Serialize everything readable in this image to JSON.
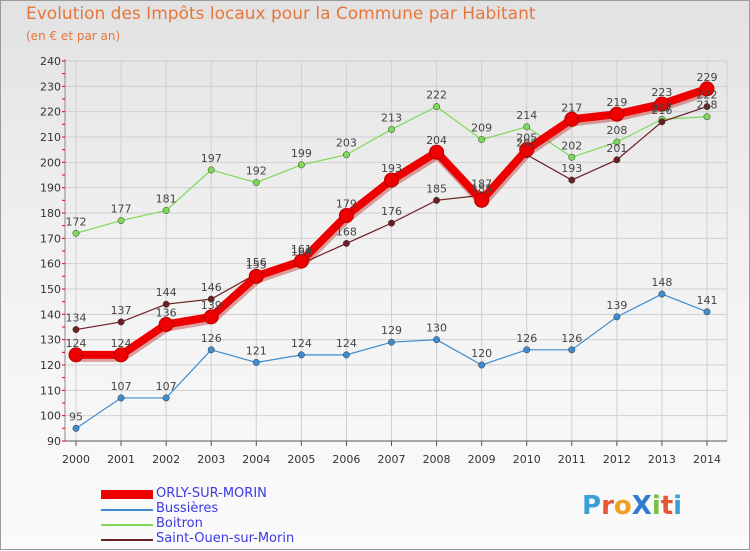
{
  "chart_data": {
    "type": "line",
    "title": "Evolution des Impôts locaux pour la Commune par Habitant",
    "subtitle": "(en € et par an)",
    "xlabel": "",
    "ylabel": "",
    "ylim": [
      90,
      240
    ],
    "yticks": [
      "90",
      "100",
      "110",
      "120",
      "130",
      "140",
      "150",
      "160",
      "170",
      "180",
      "190",
      "200",
      "210",
      "220",
      "230",
      "240"
    ],
    "categories": [
      "2000",
      "2001",
      "2002",
      "2003",
      "2004",
      "2005",
      "2006",
      "2007",
      "2008",
      "2009",
      "2010",
      "2011",
      "2012",
      "2013",
      "2014"
    ],
    "series": [
      {
        "name": "ORLY-SUR-MORIN",
        "color": "#ee0000",
        "emphasis": true,
        "values": [
          124,
          124,
          136,
          139,
          155,
          161,
          179,
          193,
          204,
          185,
          205,
          217,
          219,
          223,
          229
        ]
      },
      {
        "name": "Bussières",
        "color": "#3d8ccf",
        "values": [
          95,
          107,
          107,
          126,
          121,
          124,
          124,
          129,
          130,
          120,
          126,
          126,
          139,
          148,
          141
        ]
      },
      {
        "name": "Boitron",
        "color": "#7ed957",
        "values": [
          172,
          177,
          181,
          197,
          192,
          199,
          203,
          213,
          222,
          209,
          214,
          202,
          208,
          217,
          218
        ]
      },
      {
        "name": "Saint-Ouen-sur-Morin",
        "color": "#6b1f24",
        "values": [
          134,
          137,
          144,
          146,
          156,
          160,
          168,
          176,
          185,
          187,
          203,
          193,
          201,
          216,
          222
        ]
      }
    ]
  },
  "logo_text": "ProXiti"
}
